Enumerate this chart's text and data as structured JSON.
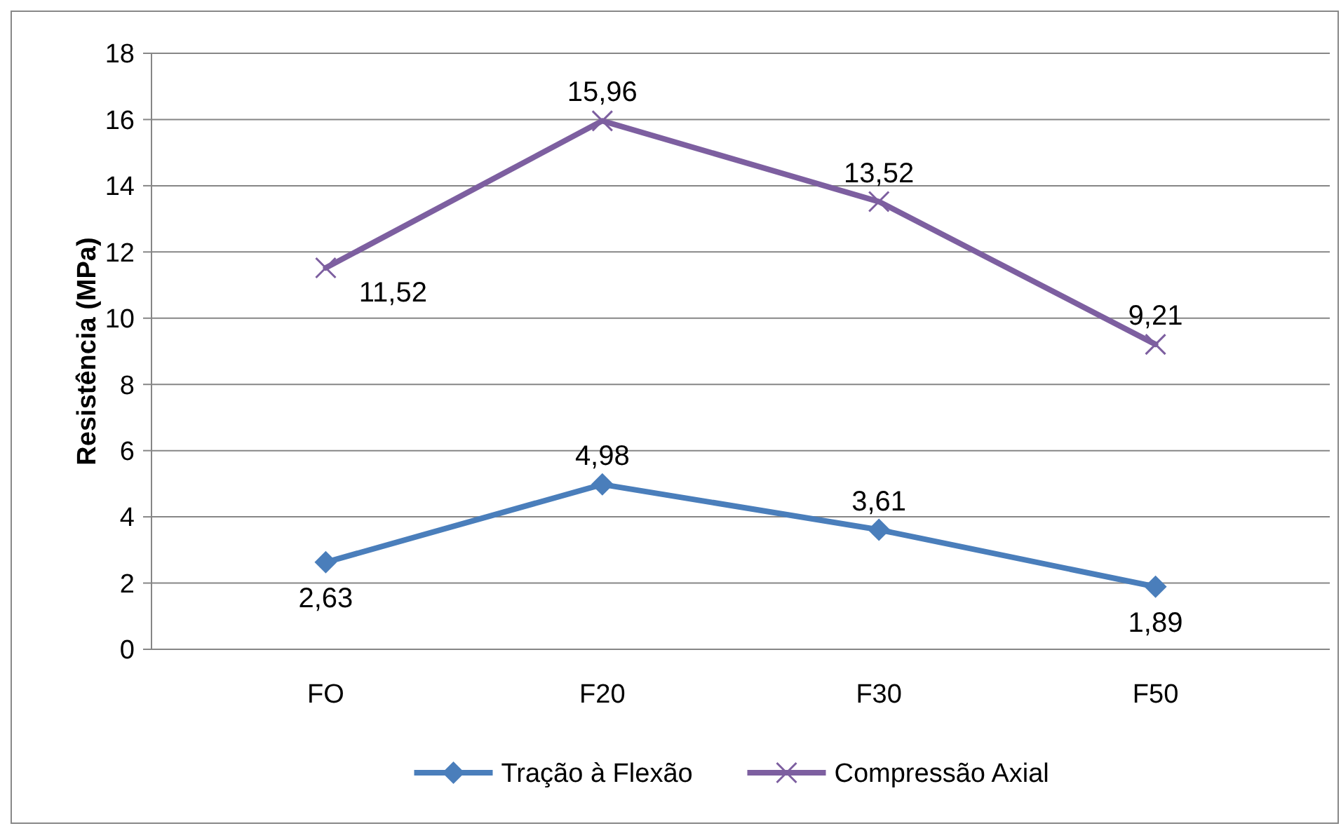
{
  "chart_data": {
    "type": "line",
    "ylabel": "Resistência (MPa)",
    "categories": [
      "FO",
      "F20",
      "F30",
      "F50"
    ],
    "series": [
      {
        "name": "Tração à Flexão",
        "color": "#4a7ebb",
        "values": [
          2.63,
          4.98,
          3.61,
          1.89
        ],
        "value_labels": [
          "2,63",
          "4,98",
          "3,61",
          "1,89"
        ],
        "marker": "diamond"
      },
      {
        "name": "Compressão Axial",
        "color": "#7d5fa0",
        "values": [
          11.52,
          15.96,
          13.52,
          9.21
        ],
        "value_labels": [
          "11,52",
          "15,96",
          "13,52",
          "9,21"
        ],
        "marker": "cross"
      }
    ],
    "ylim": [
      0,
      18
    ],
    "yticks": [
      0,
      2,
      4,
      6,
      8,
      10,
      12,
      14,
      16,
      18
    ],
    "grid": "y",
    "legend": "bottom"
  }
}
